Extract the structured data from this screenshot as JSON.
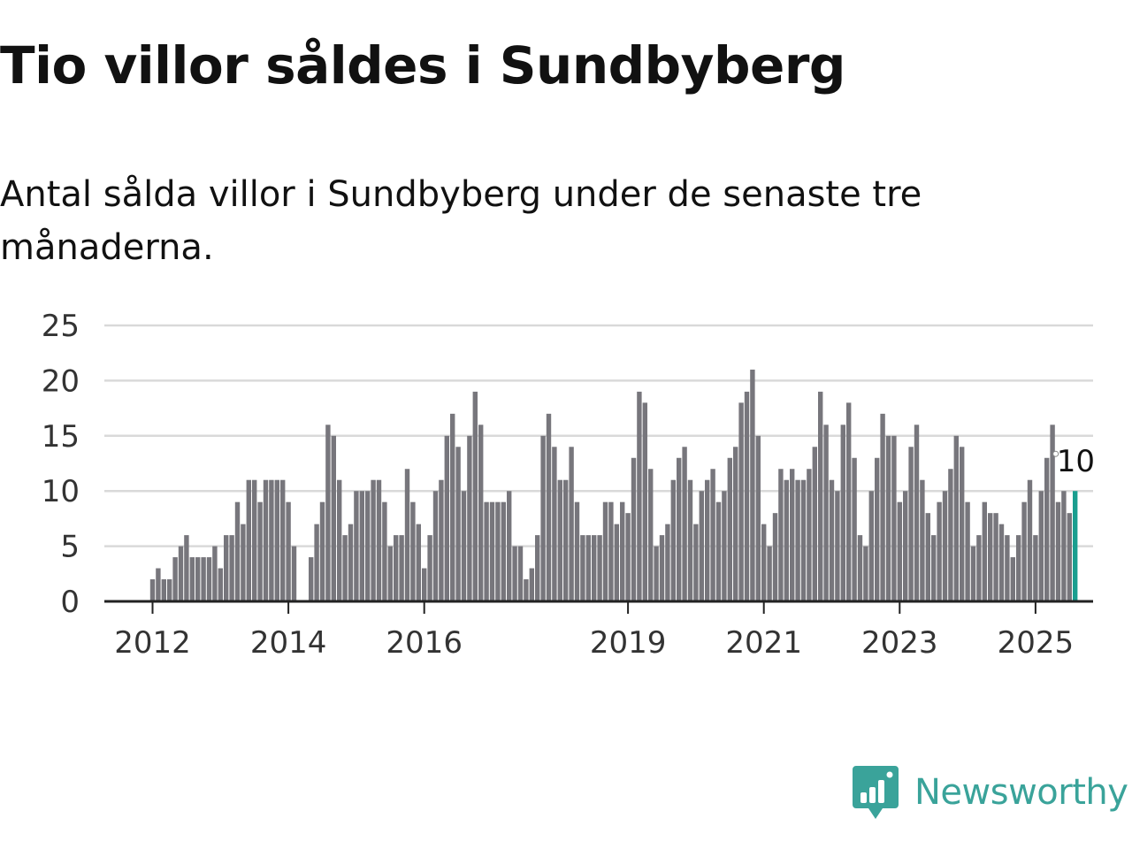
{
  "header": {
    "title": "Tio villor såldes i Sundbyberg",
    "subtitle": "Antal sålda villor i Sundbyberg under de senaste tre månaderna."
  },
  "brand": {
    "name": "Newsworthy",
    "color": "#3aa39a",
    "icon": "bar-chart-speech-bubble-icon"
  },
  "colors": {
    "bar": "#77767c",
    "highlight": "#1a9e8f",
    "grid": "#d9d9d9",
    "axis": "#222222"
  },
  "chart_data": {
    "type": "bar",
    "title": "",
    "xlabel": "",
    "ylabel": "",
    "ylim": [
      0,
      25
    ],
    "yticks": [
      0,
      5,
      10,
      15,
      20,
      25
    ],
    "xticks": [
      "2012",
      "2014",
      "2016",
      "2019",
      "2021",
      "2023",
      "2025"
    ],
    "grid": true,
    "legend": "none",
    "highlight": {
      "label": "10",
      "value": 10
    },
    "values": [
      2,
      3,
      2,
      2,
      4,
      5,
      6,
      4,
      4,
      4,
      4,
      5,
      3,
      6,
      6,
      9,
      7,
      11,
      11,
      9,
      11,
      11,
      11,
      11,
      9,
      5,
      null,
      null,
      4,
      7,
      9,
      16,
      15,
      11,
      6,
      7,
      10,
      10,
      10,
      11,
      11,
      9,
      5,
      6,
      6,
      12,
      9,
      7,
      3,
      6,
      10,
      11,
      15,
      17,
      14,
      10,
      15,
      19,
      16,
      9,
      9,
      9,
      9,
      10,
      5,
      5,
      2,
      3,
      6,
      15,
      17,
      14,
      11,
      11,
      14,
      9,
      6,
      6,
      6,
      6,
      9,
      9,
      7,
      9,
      8,
      13,
      19,
      18,
      12,
      5,
      6,
      7,
      11,
      13,
      14,
      11,
      7,
      10,
      11,
      12,
      9,
      10,
      13,
      14,
      18,
      19,
      21,
      15,
      7,
      5,
      8,
      12,
      11,
      12,
      11,
      11,
      12,
      14,
      19,
      16,
      11,
      10,
      16,
      18,
      13,
      6,
      5,
      10,
      13,
      17,
      15,
      15,
      9,
      10,
      14,
      16,
      11,
      8,
      6,
      9,
      10,
      12,
      15,
      14,
      9,
      5,
      6,
      9,
      8,
      8,
      7,
      6,
      4,
      6,
      9,
      11,
      6,
      10,
      13,
      16,
      9,
      10,
      8,
      10
    ]
  }
}
